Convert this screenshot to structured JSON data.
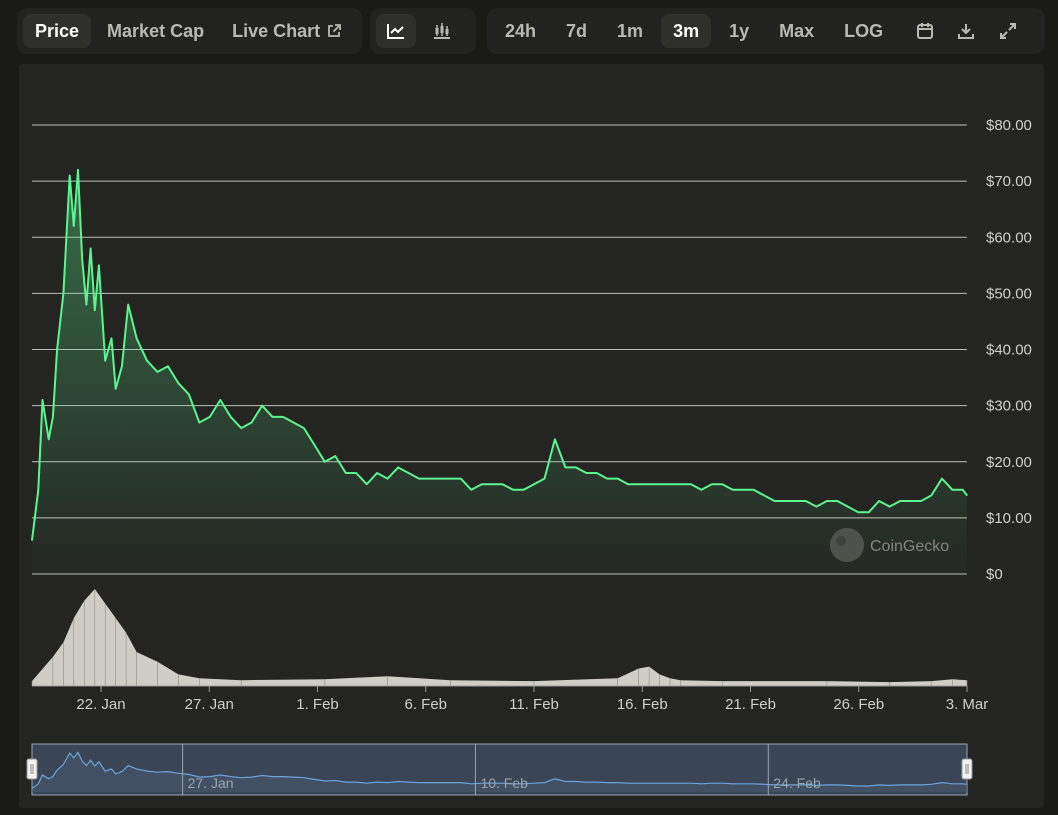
{
  "toolbar": {
    "tabs": [
      {
        "label": "Price",
        "active": true
      },
      {
        "label": "Market Cap",
        "active": false
      },
      {
        "label": "Live Chart",
        "active": false
      }
    ],
    "chart_types": [
      {
        "icon": "line-chart-icon",
        "active": true
      },
      {
        "icon": "candlestick-chart-icon",
        "active": false
      }
    ],
    "ranges": [
      {
        "label": "24h",
        "active": false
      },
      {
        "label": "7d",
        "active": false
      },
      {
        "label": "1m",
        "active": false
      },
      {
        "label": "3m",
        "active": true
      },
      {
        "label": "1y",
        "active": false
      },
      {
        "label": "Max",
        "active": false
      },
      {
        "label": "LOG",
        "active": false
      }
    ],
    "icons": [
      "calendar-icon",
      "download-icon",
      "expand-icon"
    ]
  },
  "watermark": "CoinGecko",
  "colors": {
    "line": "#5bf590",
    "grid": "#d8d8d2",
    "volume": "#e0dcd6",
    "navigator_line": "#6ea3d8",
    "navigator_fill": "#3e4c5c",
    "background": "#1a1a17",
    "panel": "#242421"
  },
  "chart_data": {
    "type": "area",
    "title": "",
    "xlabel": "",
    "ylabel": "",
    "ylim": [
      0,
      80
    ],
    "y_ticks": [
      "$0",
      "$10.00",
      "$20.00",
      "$30.00",
      "$40.00",
      "$50.00",
      "$60.00",
      "$70.00",
      "$80.00"
    ],
    "x_tick_labels": [
      "22. Jan",
      "27. Jan",
      "1. Feb",
      "6. Feb",
      "11. Feb",
      "16. Feb",
      "21. Feb",
      "26. Feb",
      "3. Mar"
    ],
    "series": [
      {
        "type": "line",
        "x": [
          0,
          0.3,
          0.5,
          0.8,
          1.0,
          1.2,
          1.5,
          1.8,
          2.0,
          2.2,
          2.4,
          2.6,
          2.8,
          3.0,
          3.2,
          3.5,
          3.8,
          4.0,
          4.3,
          4.6,
          5.0,
          5.5,
          6.0,
          6.5,
          7.0,
          7.5,
          8.0,
          8.5,
          9.0,
          9.5,
          10.0,
          10.5,
          11.0,
          11.5,
          12.0,
          12.5,
          13.0,
          13.5,
          14.0,
          14.5,
          15.0,
          15.5,
          16.0,
          16.5,
          17.0,
          17.5,
          18.0,
          18.5,
          19.0,
          19.5,
          20.0,
          20.5,
          21.0,
          21.5,
          22.0,
          22.5,
          23.0,
          23.5,
          24.0,
          24.5,
          25.0,
          25.5,
          26.0,
          26.5,
          27.0,
          27.5,
          28.0,
          28.5,
          29.0,
          29.5,
          30.0,
          30.5,
          31.0,
          31.5,
          32.0,
          32.5,
          33.0,
          33.5,
          34.0,
          34.5,
          35.0,
          35.5,
          36.0,
          36.5,
          37.0,
          37.5,
          38.0,
          38.5,
          39.0,
          39.5,
          40.0,
          40.5,
          41.0,
          41.5,
          42.0,
          42.5,
          43.0,
          43.5,
          44.0,
          44.5,
          44.7
        ],
        "values": [
          6,
          15,
          31,
          24,
          28,
          40,
          50,
          71,
          62,
          72,
          56,
          48,
          58,
          47,
          55,
          38,
          42,
          33,
          37,
          48,
          42,
          38,
          36,
          37,
          34,
          32,
          27,
          28,
          31,
          28,
          26,
          27,
          30,
          28,
          28,
          27,
          26,
          23,
          20,
          21,
          18,
          18,
          16,
          18,
          17,
          19,
          18,
          17,
          17,
          17,
          17,
          17,
          15,
          16,
          16,
          16,
          15,
          15,
          16,
          17,
          24,
          19,
          19,
          18,
          18,
          17,
          17,
          16,
          16,
          16,
          16,
          16,
          16,
          16,
          15,
          16,
          16,
          15,
          15,
          15,
          14,
          13,
          13,
          13,
          13,
          12,
          13,
          13,
          12,
          11,
          11,
          13,
          12,
          13,
          13,
          13,
          14,
          17,
          15,
          15,
          14
        ]
      }
    ],
    "volume": {
      "x": [
        0,
        1.0,
        1.5,
        2.0,
        2.5,
        3.0,
        3.5,
        4.0,
        4.5,
        5.0,
        6.0,
        7.0,
        8.0,
        10.0,
        14.0,
        17.0,
        20.0,
        24.0,
        28.0,
        29.0,
        29.5,
        30.0,
        30.5,
        31.0,
        33.0,
        38.0,
        41.0,
        43.0,
        44.0,
        44.7
      ],
      "values": [
        0.05,
        0.3,
        0.45,
        0.7,
        0.88,
        1.0,
        0.85,
        0.7,
        0.55,
        0.35,
        0.25,
        0.12,
        0.08,
        0.06,
        0.07,
        0.1,
        0.06,
        0.05,
        0.08,
        0.18,
        0.2,
        0.12,
        0.08,
        0.06,
        0.05,
        0.05,
        0.04,
        0.05,
        0.07,
        0.06
      ]
    },
    "navigator_labels": [
      "27. Jan",
      "10. Feb",
      "24. Feb"
    ]
  }
}
